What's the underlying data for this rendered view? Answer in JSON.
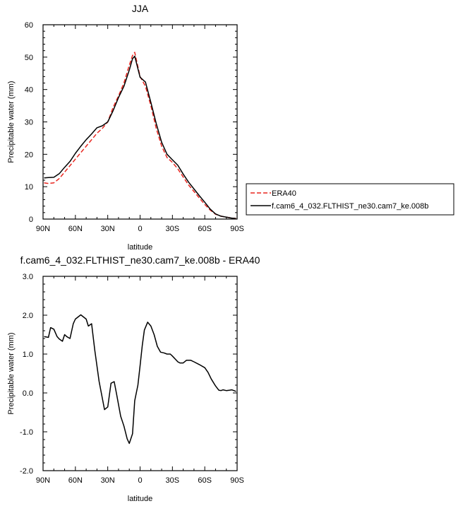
{
  "chart_data": [
    {
      "type": "line",
      "title": "JJA",
      "xlabel": "latitude",
      "ylabel": "Precipitable water (mm)",
      "xlim": [
        90,
        -90
      ],
      "ylim": [
        0,
        60
      ],
      "x_ticks": [
        90,
        60,
        30,
        0,
        -30,
        -60,
        -90
      ],
      "x_tick_labels": [
        "90N",
        "60N",
        "30N",
        "0",
        "30S",
        "60S",
        "90S"
      ],
      "y_ticks": [
        0,
        10,
        20,
        30,
        40,
        50,
        60
      ],
      "y_tick_labels": [
        "0",
        "10",
        "20",
        "30",
        "40",
        "50",
        "60"
      ],
      "legend": "outside-right",
      "series": [
        {
          "name": "ERA40",
          "color": "#e8261f",
          "dash": "dashed",
          "x": [
            89,
            85,
            80,
            75,
            70,
            65,
            60,
            55,
            50,
            45,
            40,
            35,
            30,
            25,
            20,
            15,
            10,
            7,
            5,
            0,
            -5,
            -10,
            -15,
            -20,
            -25,
            -30,
            -35,
            -40,
            -45,
            -50,
            -55,
            -60,
            -65,
            -70,
            -75,
            -80,
            -85,
            -89
          ],
          "y": [
            11.2,
            11.0,
            11.2,
            12.5,
            14.5,
            16.5,
            18.5,
            20.5,
            22.5,
            24.5,
            26.5,
            28.0,
            30.0,
            34.5,
            38.0,
            42.0,
            47.5,
            50.5,
            51.5,
            44.0,
            41.0,
            35.0,
            28.0,
            22.5,
            19.0,
            17.5,
            15.5,
            13.0,
            10.5,
            8.5,
            6.5,
            4.5,
            2.8,
            1.5,
            0.9,
            0.6,
            0.3,
            0.2
          ]
        },
        {
          "name": "f.cam6_4_032.FLTHIST_ne30.cam7_ke.008b",
          "color": "#000000",
          "dash": "solid",
          "x": [
            89,
            85,
            80,
            75,
            70,
            65,
            60,
            55,
            50,
            45,
            40,
            35,
            30,
            25,
            20,
            15,
            10,
            7,
            5,
            0,
            -5,
            -10,
            -15,
            -20,
            -25,
            -30,
            -35,
            -40,
            -45,
            -50,
            -55,
            -60,
            -65,
            -70,
            -75,
            -80,
            -85,
            -89
          ],
          "y": [
            12.7,
            12.8,
            12.9,
            14.0,
            16.0,
            17.8,
            20.3,
            22.5,
            24.5,
            26.3,
            28.2,
            28.8,
            30.0,
            33.5,
            37.5,
            41.0,
            46.0,
            49.5,
            50.3,
            43.8,
            42.3,
            36.0,
            29.5,
            23.7,
            20.0,
            18.3,
            16.6,
            13.9,
            11.4,
            9.3,
            7.2,
            5.2,
            3.1,
            1.6,
            0.9,
            0.6,
            0.3,
            0.2
          ]
        }
      ]
    },
    {
      "type": "line",
      "title": "f.cam6_4_032.FLTHIST_ne30.cam7_ke.008b - ERA40",
      "xlabel": "latitude",
      "ylabel": "Precipitable water (mm)",
      "xlim": [
        90,
        -90
      ],
      "ylim": [
        -2.0,
        3.0
      ],
      "x_ticks": [
        90,
        60,
        30,
        0,
        -30,
        -60,
        -90
      ],
      "x_tick_labels": [
        "90N",
        "60N",
        "30N",
        "0",
        "30S",
        "60S",
        "90S"
      ],
      "y_ticks": [
        -2.0,
        -1.0,
        0.0,
        1.0,
        2.0,
        3.0
      ],
      "y_tick_labels": [
        "-2.0",
        "-1.0",
        "0.0",
        "1.0",
        "2.0",
        "3.0"
      ],
      "series": [
        {
          "color": "#000000",
          "dash": "solid",
          "x": [
            89,
            85,
            83,
            80,
            77,
            75,
            72,
            70,
            68,
            65,
            62,
            60,
            55,
            50,
            48,
            45,
            42,
            38,
            33,
            30,
            27,
            24,
            22,
            18,
            15,
            12,
            10,
            7,
            5,
            2,
            0,
            -2,
            -4,
            -7,
            -10,
            -13,
            -16,
            -19,
            -22,
            -25,
            -28,
            -30,
            -35,
            -37,
            -40,
            -43,
            -47,
            -50,
            -55,
            -60,
            -63,
            -66,
            -70,
            -73,
            -75,
            -77,
            -80,
            -83,
            -85,
            -89
          ],
          "y": [
            1.45,
            1.43,
            1.68,
            1.64,
            1.45,
            1.39,
            1.33,
            1.5,
            1.45,
            1.4,
            1.78,
            1.9,
            2.01,
            1.9,
            1.72,
            1.78,
            1.1,
            0.3,
            -0.43,
            -0.36,
            0.25,
            0.29,
            0.0,
            -0.6,
            -0.85,
            -1.18,
            -1.3,
            -1.05,
            -0.2,
            0.2,
            0.7,
            1.22,
            1.62,
            1.82,
            1.72,
            1.5,
            1.2,
            1.05,
            1.03,
            1.0,
            1.0,
            0.95,
            0.8,
            0.77,
            0.77,
            0.84,
            0.84,
            0.8,
            0.73,
            0.65,
            0.53,
            0.36,
            0.18,
            0.07,
            0.06,
            0.08,
            0.06,
            0.07,
            0.08,
            0.04
          ]
        }
      ]
    }
  ]
}
